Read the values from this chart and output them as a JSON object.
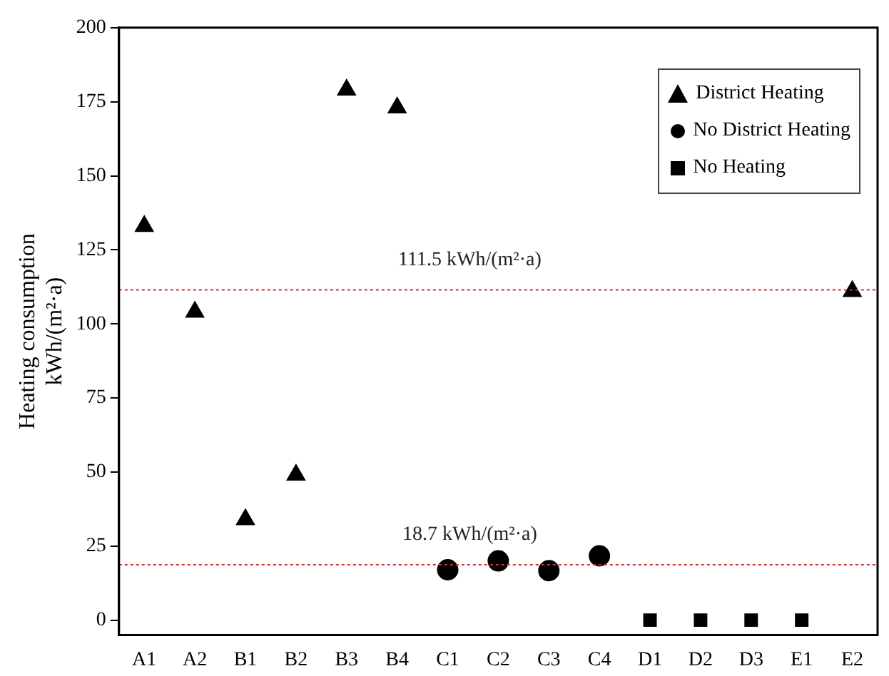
{
  "chart_data": {
    "type": "scatter",
    "ylabel": "Heating consumption\nkWh/(m²·a)",
    "categories": [
      "A1",
      "A2",
      "B1",
      "B2",
      "B3",
      "B4",
      "C1",
      "C2",
      "C3",
      "C4",
      "D1",
      "D2",
      "D3",
      "E1",
      "E2"
    ],
    "series": [
      {
        "name": "District Heating",
        "color": "#000000",
        "marker": "triangle",
        "x": [
          "A1",
          "A2",
          "B1",
          "B2",
          "B3",
          "B4",
          "E2"
        ],
        "values": [
          133,
          104,
          34,
          49,
          179,
          173,
          111
        ]
      },
      {
        "name": "No District Heating",
        "color": "#000000",
        "marker": "circle",
        "x": [
          "C1",
          "C2",
          "C3",
          "C4"
        ],
        "values": [
          17,
          20,
          16.7,
          21.7
        ]
      },
      {
        "name": "No Heating",
        "color": "#000000",
        "marker": "square",
        "x": [
          "D1",
          "D2",
          "D3",
          "E1"
        ],
        "values": [
          0,
          0,
          0,
          0
        ]
      }
    ],
    "ylim": [
      -5,
      200
    ],
    "yticks": [
      0,
      25,
      50,
      75,
      100,
      125,
      150,
      175,
      200
    ],
    "grid": false,
    "legend": "top right",
    "ref_lines": [
      {
        "axis": "y",
        "value": 111.5,
        "label": "111.5 kWh/(m²·a)",
        "color": "#cc3333",
        "line_style": "dotted"
      },
      {
        "axis": "y",
        "value": 18.7,
        "label": "18.7 kWh/(m²·a)",
        "color": "#cc3333",
        "line_style": "dotted"
      }
    ]
  }
}
